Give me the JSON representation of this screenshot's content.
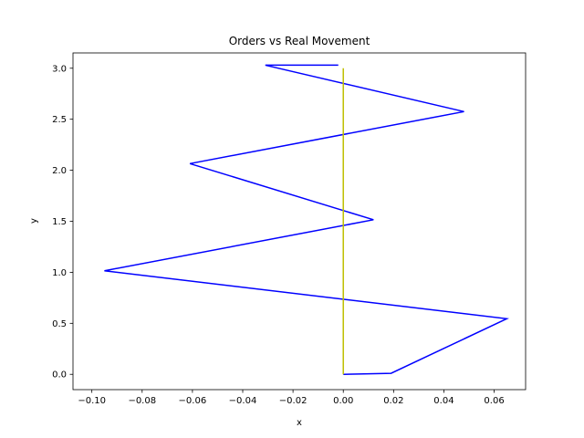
{
  "chart_data": {
    "type": "line",
    "title": "Orders vs Real Movement",
    "xlabel": "x",
    "ylabel": "y",
    "xlim": [
      -0.1075,
      0.0725
    ],
    "ylim": [
      -0.15,
      3.15
    ],
    "x_ticks": [
      -0.1,
      -0.08,
      -0.06,
      -0.04,
      -0.02,
      0.0,
      0.02,
      0.04,
      0.06
    ],
    "x_tick_labels": [
      "−0.10",
      "−0.08",
      "−0.06",
      "−0.04",
      "−0.02",
      "0.00",
      "0.02",
      "0.04",
      "0.06"
    ],
    "y_ticks": [
      0.0,
      0.5,
      1.0,
      1.5,
      2.0,
      2.5,
      3.0
    ],
    "y_tick_labels": [
      "0.0",
      "0.5",
      "1.0",
      "1.5",
      "2.0",
      "2.5",
      "3.0"
    ],
    "grid": false,
    "legend": "none",
    "series": [
      {
        "color": "#0000ff",
        "x": [
          0.0,
          0.019,
          0.065,
          -0.095,
          0.012,
          -0.061,
          0.048,
          -0.031,
          -0.002
        ],
        "y": [
          0.0,
          0.01,
          0.545,
          1.015,
          1.515,
          2.065,
          2.575,
          3.03,
          3.03
        ]
      },
      {
        "color": "#bfbf00",
        "x": [
          0.0,
          0.0
        ],
        "y": [
          0.0,
          3.0
        ]
      }
    ]
  }
}
